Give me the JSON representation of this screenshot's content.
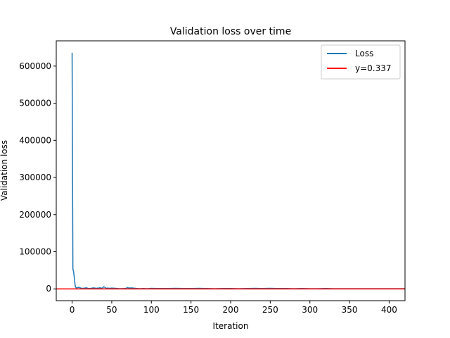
{
  "chart_data": {
    "type": "line",
    "title": "Validation loss over time",
    "xlabel": "Iteration",
    "ylabel": "Validation loss",
    "xlim": [
      -20,
      420
    ],
    "ylim": [
      -31800,
      668000
    ],
    "x_ticks": [
      0,
      50,
      100,
      150,
      200,
      250,
      300,
      350,
      400
    ],
    "x_tick_labels": [
      "0",
      "50",
      "100",
      "150",
      "200",
      "250",
      "300",
      "350",
      "400"
    ],
    "y_ticks": [
      0,
      100000,
      200000,
      300000,
      400000,
      500000,
      600000
    ],
    "y_tick_labels": [
      "0",
      "100000",
      "200000",
      "300000",
      "400000",
      "500000",
      "600000"
    ],
    "grid": false,
    "legend_position": "top-right",
    "series": [
      {
        "name": "Loss",
        "color": "#1f77b4",
        "x": [
          0,
          1,
          2,
          3,
          4,
          5,
          6,
          7,
          8,
          10,
          12,
          14,
          16,
          18,
          20,
          22,
          25,
          28,
          30,
          33,
          35,
          38,
          40,
          43,
          45,
          48,
          50,
          55,
          60,
          65,
          68,
          70,
          72,
          75,
          80,
          85,
          90,
          95,
          100,
          110,
          120,
          130,
          140,
          150,
          160,
          170,
          180,
          190,
          200,
          210,
          220,
          230,
          240,
          250,
          260,
          270,
          280,
          290,
          300,
          310,
          320,
          330,
          340,
          350,
          360,
          370,
          380,
          390,
          400,
          410,
          420
        ],
        "y": [
          636000,
          54000,
          45000,
          25000,
          7000,
          3000,
          2500,
          3500,
          4000,
          3000,
          1500,
          1500,
          2000,
          3000,
          1500,
          1000,
          2000,
          2500,
          1500,
          2000,
          3000,
          1500,
          6000,
          1500,
          2000,
          1500,
          2000,
          1500,
          500,
          1000,
          1500,
          3500,
          2000,
          2500,
          1500,
          500,
          1000,
          500,
          1500,
          1000,
          1000,
          1500,
          1000,
          1000,
          1500,
          1000,
          500,
          1000,
          1000,
          500,
          1000,
          1500,
          1000,
          1500,
          1000,
          1000,
          500,
          1000,
          500,
          500,
          1000,
          500,
          500,
          500,
          500,
          500,
          500,
          500,
          500,
          500,
          500
        ]
      },
      {
        "name": "y=0.337",
        "color": "#ff0000",
        "kind": "hline",
        "y": 0.337
      }
    ]
  }
}
